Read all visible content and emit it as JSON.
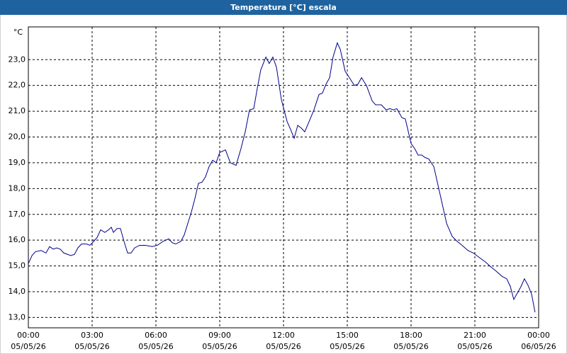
{
  "chart_data": {
    "type": "line",
    "title": "Temperatura [°C] escala",
    "y_unit": "°C",
    "x": [
      0,
      0.17,
      0.33,
      0.6,
      0.83,
      1.0,
      1.17,
      1.33,
      1.5,
      1.67,
      2.0,
      2.17,
      2.33,
      2.5,
      2.73,
      2.9,
      3.07,
      3.23,
      3.4,
      3.6,
      3.77,
      3.9,
      4.0,
      4.17,
      4.33,
      4.5,
      4.67,
      4.83,
      5.0,
      5.23,
      5.5,
      5.83,
      6.07,
      6.33,
      6.6,
      6.77,
      6.93,
      7.17,
      7.33,
      7.5,
      7.67,
      7.83,
      8.0,
      8.17,
      8.33,
      8.5,
      8.67,
      8.83,
      9.0,
      9.27,
      9.5,
      9.77,
      10.0,
      10.2,
      10.4,
      10.6,
      10.77,
      10.93,
      11.17,
      11.33,
      11.5,
      11.67,
      11.9,
      12.17,
      12.33,
      12.5,
      12.67,
      12.83,
      13.0,
      13.23,
      13.43,
      13.67,
      13.83,
      14.0,
      14.17,
      14.33,
      14.53,
      14.67,
      14.9,
      15.1,
      15.33,
      15.5,
      15.67,
      15.9,
      16.17,
      16.33,
      16.6,
      16.83,
      17.0,
      17.17,
      17.33,
      17.57,
      17.73,
      18.0,
      18.17,
      18.33,
      18.5,
      18.67,
      18.83,
      19.07,
      19.33,
      19.67,
      19.93,
      20.17,
      20.4,
      20.67,
      20.93,
      21.17,
      21.5,
      21.77,
      22.0,
      22.27,
      22.5,
      22.67,
      22.83,
      23.0,
      23.17,
      23.33,
      23.5,
      23.67,
      23.83
    ],
    "series": [
      {
        "name": "Temperatura",
        "color": "#00008b",
        "values": [
          15.09,
          15.4,
          15.55,
          15.6,
          15.5,
          15.75,
          15.65,
          15.7,
          15.65,
          15.5,
          15.4,
          15.45,
          15.7,
          15.85,
          15.85,
          15.8,
          15.95,
          16.1,
          16.4,
          16.3,
          16.4,
          16.5,
          16.3,
          16.45,
          16.45,
          15.95,
          15.5,
          15.5,
          15.7,
          15.8,
          15.8,
          15.75,
          15.8,
          15.95,
          16.05,
          15.9,
          15.85,
          15.95,
          16.2,
          16.65,
          17.1,
          17.6,
          18.2,
          18.25,
          18.45,
          18.85,
          19.1,
          19.0,
          19.4,
          19.5,
          19.0,
          18.9,
          19.55,
          20.2,
          21.05,
          21.1,
          21.9,
          22.6,
          23.1,
          22.85,
          23.1,
          22.7,
          21.45,
          20.6,
          20.3,
          19.95,
          20.45,
          20.35,
          20.2,
          20.65,
          21.05,
          21.65,
          21.7,
          22.05,
          22.3,
          23.1,
          23.65,
          23.4,
          22.55,
          22.3,
          22.0,
          22.05,
          22.3,
          22.0,
          21.4,
          21.25,
          21.25,
          21.05,
          21.1,
          21.05,
          21.1,
          20.75,
          20.7,
          19.75,
          19.55,
          19.3,
          19.3,
          19.2,
          19.15,
          18.85,
          17.9,
          16.65,
          16.15,
          15.95,
          15.8,
          15.6,
          15.5,
          15.35,
          15.15,
          14.95,
          14.8,
          14.6,
          14.5,
          14.2,
          13.7,
          13.95,
          14.2,
          14.5,
          14.25,
          13.9,
          13.2
        ]
      }
    ],
    "xlim": [
      0,
      24
    ],
    "ylim": [
      12.6,
      24.27
    ],
    "xticks": [
      {
        "value": 0,
        "label": "00:00\n05/05/26"
      },
      {
        "value": 3,
        "label": "03:00\n05/05/26"
      },
      {
        "value": 6,
        "label": "06:00\n05/05/26"
      },
      {
        "value": 9,
        "label": "09:00\n05/05/26"
      },
      {
        "value": 12,
        "label": "12:00\n05/05/26"
      },
      {
        "value": 15,
        "label": "15:00\n05/05/26"
      },
      {
        "value": 18,
        "label": "18:00\n05/05/26"
      },
      {
        "value": 21,
        "label": "21:00\n05/05/26"
      },
      {
        "value": 24,
        "label": "00:00\n06/05/26"
      }
    ],
    "yticks": [
      {
        "value": 13,
        "label": "13,0"
      },
      {
        "value": 14,
        "label": "14,0"
      },
      {
        "value": 15,
        "label": "15,0"
      },
      {
        "value": 16,
        "label": "16,0"
      },
      {
        "value": 17,
        "label": "17,0"
      },
      {
        "value": 18,
        "label": "18,0"
      },
      {
        "value": 19,
        "label": "19,0"
      },
      {
        "value": 20,
        "label": "20,0"
      },
      {
        "value": 21,
        "label": "21,0"
      },
      {
        "value": 22,
        "label": "22,0"
      },
      {
        "value": 23,
        "label": "23,0"
      }
    ],
    "grid": true
  }
}
